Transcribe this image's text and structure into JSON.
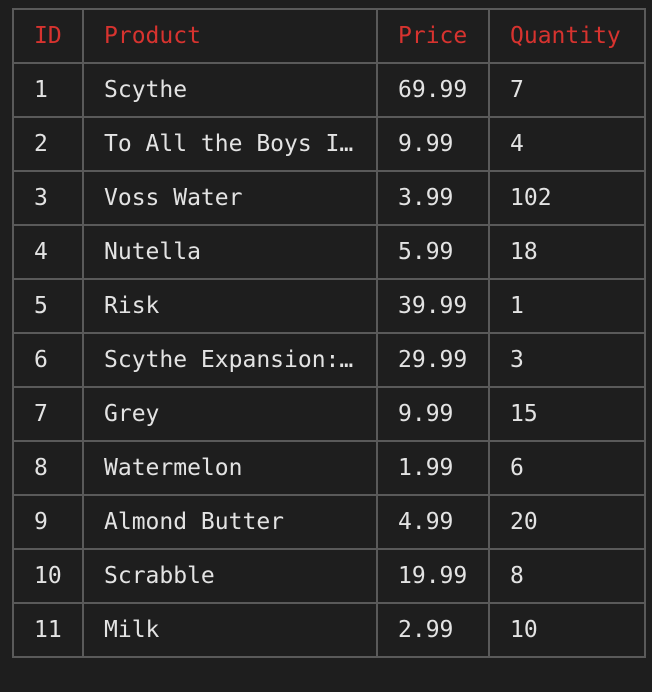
{
  "table": {
    "columns": [
      "ID",
      "Product",
      "Price",
      "Quantity"
    ],
    "rows": [
      {
        "id": "1",
        "product": "Scythe",
        "price": "69.99",
        "quantity": "7"
      },
      {
        "id": "2",
        "product": "To All the Boys I…",
        "price": "9.99",
        "quantity": "4"
      },
      {
        "id": "3",
        "product": "Voss Water",
        "price": "3.99",
        "quantity": "102"
      },
      {
        "id": "4",
        "product": "Nutella",
        "price": "5.99",
        "quantity": "18"
      },
      {
        "id": "5",
        "product": "Risk",
        "price": "39.99",
        "quantity": "1"
      },
      {
        "id": "6",
        "product": "Scythe Expansion:…",
        "price": "29.99",
        "quantity": "3"
      },
      {
        "id": "7",
        "product": "Grey",
        "price": "9.99",
        "quantity": "15"
      },
      {
        "id": "8",
        "product": "Watermelon",
        "price": "1.99",
        "quantity": "6"
      },
      {
        "id": "9",
        "product": "Almond Butter",
        "price": "4.99",
        "quantity": "20"
      },
      {
        "id": "10",
        "product": "Scrabble",
        "price": "19.99",
        "quantity": "8"
      },
      {
        "id": "11",
        "product": "Milk",
        "price": "2.99",
        "quantity": "10"
      }
    ]
  },
  "colors": {
    "background": "#1e1e1e",
    "header_text": "#d7332f",
    "cell_text": "#e3e3e3",
    "border": "#5a5a5a"
  }
}
